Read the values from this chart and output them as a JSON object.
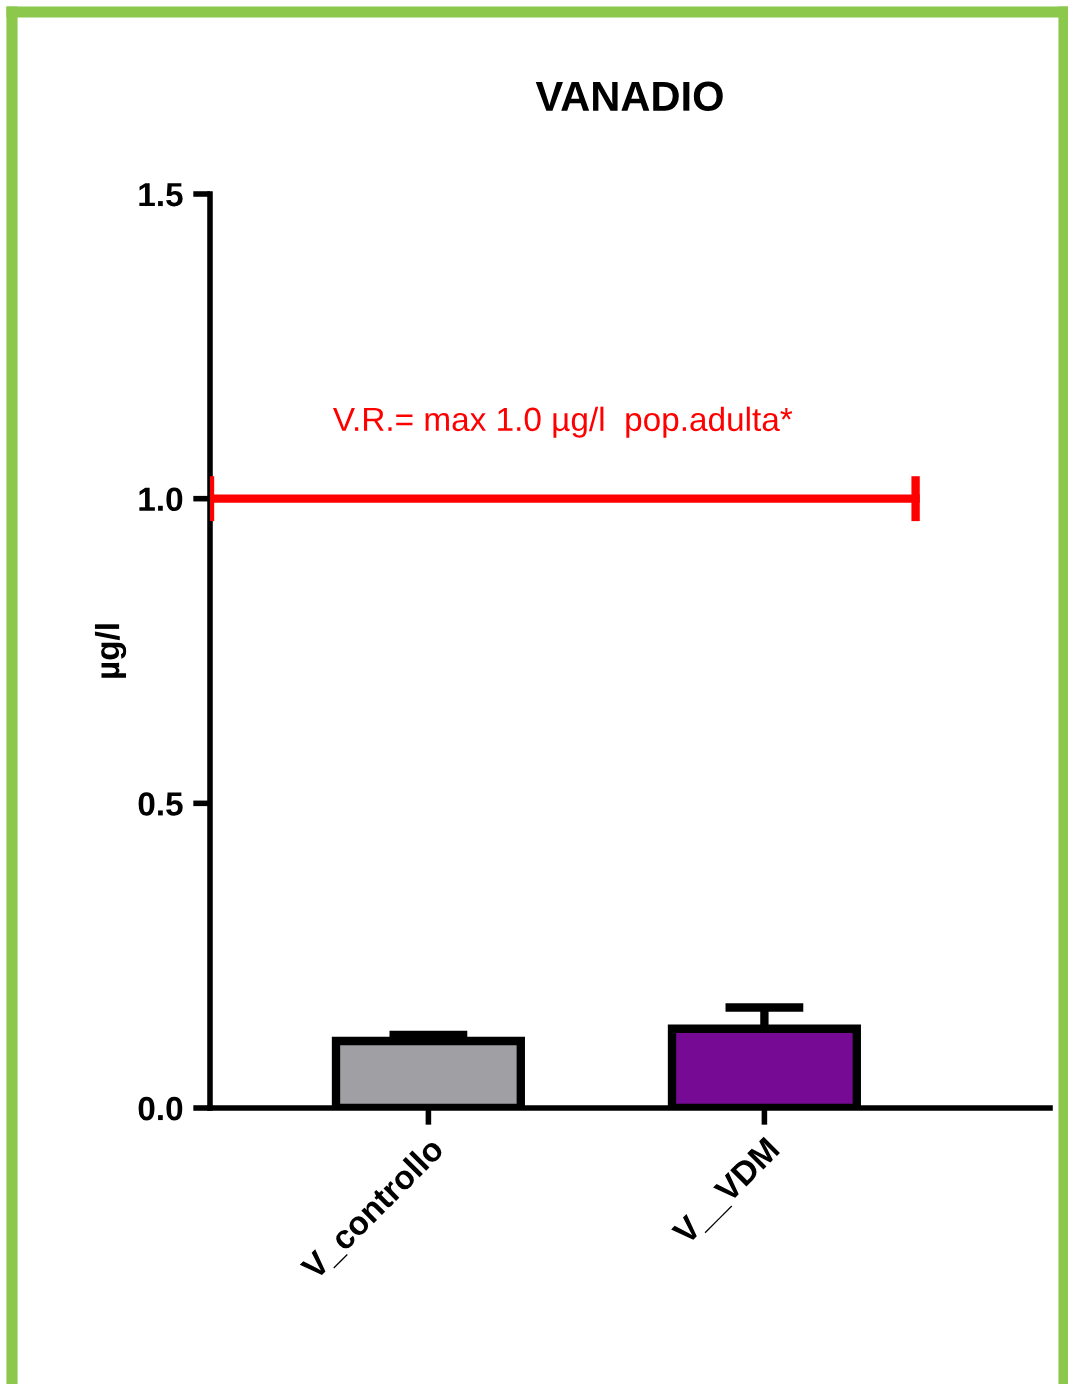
{
  "chart_data": {
    "type": "bar",
    "title": "VANADIO",
    "ylabel": "µg/l",
    "categories": [
      "V_controllo",
      "V__VDM"
    ],
    "values": [
      0.11,
      0.13
    ],
    "colors": [
      "#a09fa4",
      "#770a94"
    ],
    "errors": [
      0.01,
      0.035
    ],
    "ylim": [
      0,
      1.5
    ],
    "yticks": [
      {
        "value": 0,
        "label": "0.0"
      },
      {
        "value": 0.5,
        "label": "0.5"
      },
      {
        "value": 1.0,
        "label": "1.0"
      },
      {
        "value": 1.5,
        "label": "1.5"
      }
    ],
    "ref_lines": [
      {
        "axis": "y",
        "value": 1.0,
        "label": "V.R.= max 1.0 µg/l  pop.adulta*",
        "color": "#ff0000"
      }
    ],
    "grid": false,
    "legend": false
  }
}
